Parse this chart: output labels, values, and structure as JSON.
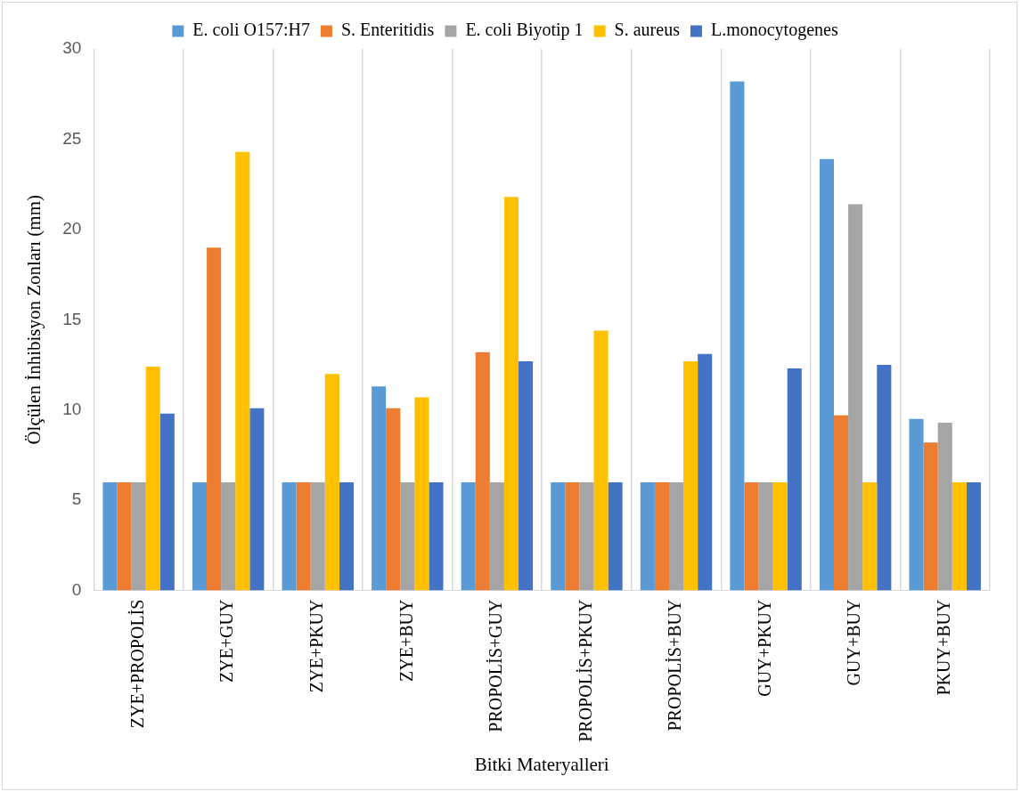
{
  "chart_data": {
    "type": "bar",
    "xlabel": "Bitki Materyalleri",
    "ylabel": "Ölçülen İnhibisyon Zonları (mm)",
    "categories": [
      "ZYE+PROPOLİS",
      "ZYE+GUY",
      "ZYE+PKUY",
      "ZYE+BUY",
      "PROPOLİS+GUY",
      "PROPOLİS+PKUY",
      "PROPOLİS+BUY",
      "GUY+PKUY",
      "GUY+BUY",
      "PKUY+BUY"
    ],
    "series": [
      {
        "name": "E. coli O157:H7",
        "color": "#5b9bd5",
        "values": [
          6,
          6,
          6,
          11.3,
          6,
          6,
          6,
          28.2,
          23.9,
          9.5
        ]
      },
      {
        "name": "S. Enteritidis",
        "color": "#ed7d31",
        "values": [
          6,
          19.0,
          6,
          10.1,
          13.2,
          6,
          6,
          6,
          9.7,
          8.2
        ]
      },
      {
        "name": "E. coli Biyotip 1",
        "color": "#a5a5a5",
        "values": [
          6,
          6,
          6,
          6,
          6,
          6,
          6,
          6,
          21.4,
          9.3
        ]
      },
      {
        "name": "S. aureus",
        "color": "#ffc000",
        "values": [
          12.4,
          24.3,
          12.0,
          10.7,
          21.8,
          14.4,
          12.7,
          6,
          6,
          6
        ]
      },
      {
        "name": "L.monocytogenes",
        "color": "#4472c4",
        "values": [
          9.8,
          10.1,
          6,
          6,
          12.7,
          6,
          13.1,
          12.3,
          12.5,
          6
        ]
      }
    ],
    "ylim": [
      0,
      30
    ],
    "yticks": [
      0,
      5,
      10,
      15,
      20,
      25,
      30
    ],
    "grid": "x",
    "legend": "top"
  }
}
